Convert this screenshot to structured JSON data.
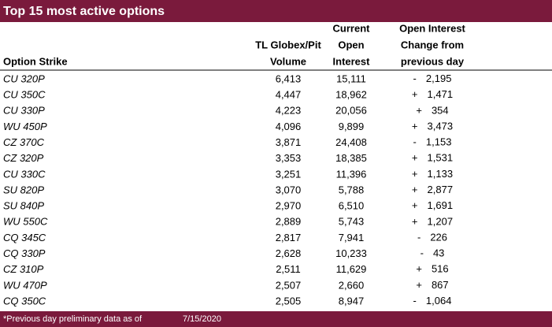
{
  "header": {
    "title": "Top 15 most active options"
  },
  "table": {
    "columns": [
      {
        "lines": [
          "Option Strike"
        ]
      },
      {
        "lines": [
          "TL Globex/Pit",
          "Volume"
        ]
      },
      {
        "lines": [
          "Current",
          "Open",
          "Interest"
        ]
      },
      {
        "lines": [
          "Open Interest",
          "Change from",
          "previous day"
        ]
      }
    ],
    "rows": [
      [
        "CU 320P",
        "6,413",
        "15,111",
        "-",
        "2,195"
      ],
      [
        "CU 350C",
        "4,447",
        "18,962",
        "+",
        "1,471"
      ],
      [
        "CU 330P",
        "4,223",
        "20,056",
        "+",
        "354"
      ],
      [
        "WU 450P",
        "4,096",
        "9,899",
        "+",
        "3,473"
      ],
      [
        "CZ 370C",
        "3,871",
        "24,408",
        "-",
        "1,153"
      ],
      [
        "CZ 320P",
        "3,353",
        "18,385",
        "+",
        "1,531"
      ],
      [
        "CU 330C",
        "3,251",
        "11,396",
        "+",
        "1,133"
      ],
      [
        "SU 820P",
        "3,070",
        "5,788",
        "+",
        "2,877"
      ],
      [
        "SU 840P",
        "2,970",
        "6,510",
        "+",
        "1,691"
      ],
      [
        "WU 550C",
        "2,889",
        "5,743",
        "+",
        "1,207"
      ],
      [
        "CQ 345C",
        "2,817",
        "7,941",
        "-",
        "226"
      ],
      [
        "CQ 330P",
        "2,628",
        "10,233",
        "-",
        "43"
      ],
      [
        "CZ 310P",
        "2,511",
        "11,629",
        "+",
        "516"
      ],
      [
        "WU 470P",
        "2,507",
        "2,660",
        "+",
        "867"
      ],
      [
        "CQ 350C",
        "2,505",
        "8,947",
        "-",
        "1,064"
      ]
    ]
  },
  "footer": {
    "note": "*Previous day preliminary data as of",
    "date": "7/15/2020"
  }
}
